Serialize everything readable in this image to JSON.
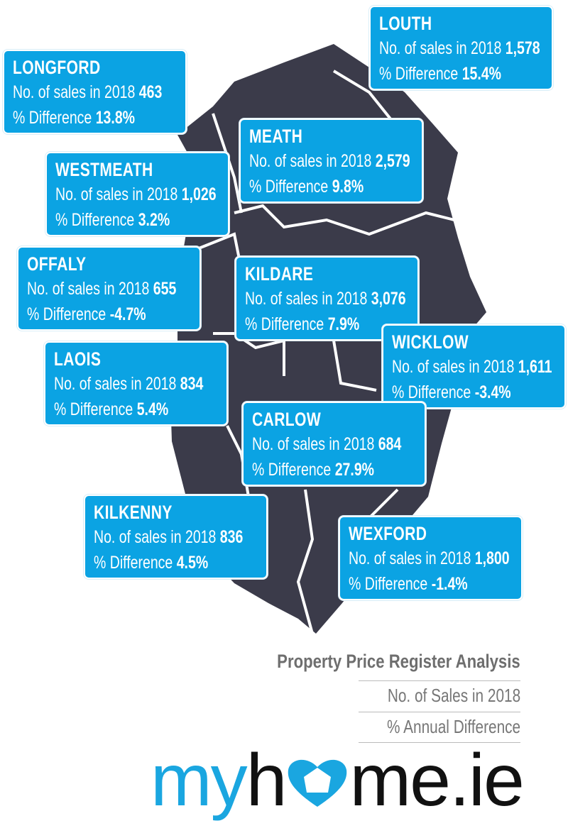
{
  "colors": {
    "box": "#0ba3e3",
    "map": "#3b3b4a",
    "brand_blue": "#1aa6e0"
  },
  "counties": [
    {
      "name": "LOUTH",
      "sales_label": "No. of sales in 2018",
      "sales": "1,578",
      "diff_label": "% Difference",
      "diff": "15.4%"
    },
    {
      "name": "LONGFORD",
      "sales_label": "No. of sales in 2018",
      "sales": "463",
      "diff_label": "% Difference",
      "diff": "13.8%"
    },
    {
      "name": "MEATH",
      "sales_label": "No. of sales in 2018",
      "sales": "2,579",
      "diff_label": "% Difference",
      "diff": "9.8%"
    },
    {
      "name": "WESTMEATH",
      "sales_label": "No. of sales in 2018",
      "sales": "1,026",
      "diff_label": "% Difference",
      "diff": "3.2%"
    },
    {
      "name": "OFFALY",
      "sales_label": "No. of sales in 2018",
      "sales": "655",
      "diff_label": "% Difference",
      "diff": "-4.7%"
    },
    {
      "name": "KILDARE",
      "sales_label": "No. of sales in 2018",
      "sales": "3,076",
      "diff_label": "% Difference",
      "diff": "7.9%"
    },
    {
      "name": "WICKLOW",
      "sales_label": "No. of sales in 2018",
      "sales": "1,611",
      "diff_label": "% Difference",
      "diff": "-3.4%"
    },
    {
      "name": "LAOIS",
      "sales_label": "No. of sales in 2018",
      "sales": "834",
      "diff_label": "% Difference",
      "diff": "5.4%"
    },
    {
      "name": "CARLOW",
      "sales_label": "No. of sales in 2018",
      "sales": "684",
      "diff_label": "% Difference",
      "diff": "27.9%"
    },
    {
      "name": "KILKENNY",
      "sales_label": "No. of sales in 2018",
      "sales": "836",
      "diff_label": "% Difference",
      "diff": "4.5%"
    },
    {
      "name": "WEXFORD",
      "sales_label": "No. of sales in 2018",
      "sales": "1,800",
      "diff_label": "% Difference",
      "diff": "-1.4%"
    }
  ],
  "legend": {
    "title": "Property Price Register Analysis",
    "line1": "No. of Sales in 2018",
    "line2": "% Annual Difference"
  },
  "logo": {
    "text_blue": "my",
    "text_dark_1": "h",
    "text_dark_2": "me.ie",
    "full": "myhome.ie"
  }
}
